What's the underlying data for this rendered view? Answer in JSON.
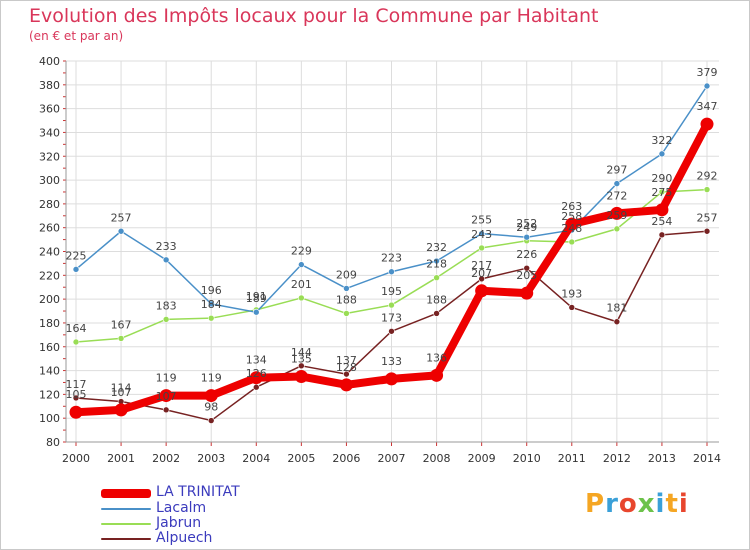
{
  "title": "Evolution des Impôts locaux pour la Commune par Habitant",
  "subtitle": "(en € et par an)",
  "brand": "Proxiti",
  "brand_colors": [
    "#f5a623",
    "#3aa0d8",
    "#e8462e",
    "#6cc24a",
    "#3aa0d8",
    "#f5a623",
    "#e8462e"
  ],
  "chart_data": {
    "type": "line",
    "x": [
      2000,
      2001,
      2002,
      2003,
      2004,
      2005,
      2006,
      2007,
      2008,
      2009,
      2010,
      2011,
      2012,
      2013,
      2014
    ],
    "ylim": [
      80,
      400
    ],
    "yticks": [
      80,
      100,
      120,
      140,
      160,
      180,
      200,
      220,
      240,
      260,
      280,
      300,
      320,
      340,
      360,
      380,
      400
    ],
    "grid": true,
    "legend_position": "bottom-left",
    "series": [
      {
        "name": "LA TRINITAT",
        "color": "#ee0000",
        "thick": true,
        "values": [
          105,
          107,
          119,
          119,
          134,
          135,
          128,
          133,
          136,
          207,
          205,
          263,
          272,
          275,
          347
        ],
        "labels": [
          "105",
          "107",
          "119",
          "119",
          "134",
          "135",
          "128",
          "133",
          "136",
          "207",
          "205",
          "263",
          "272",
          "275",
          "347"
        ]
      },
      {
        "name": "Lacalm",
        "color": "#4a90c8",
        "values": [
          225,
          257,
          233,
          196,
          189,
          229,
          209,
          223,
          232,
          255,
          252,
          258,
          297,
          322,
          379
        ],
        "labels": [
          "225",
          "257",
          "233",
          "196",
          "189",
          "229",
          "209",
          "223",
          "232",
          "255",
          "252",
          "258",
          "297",
          "322",
          "379"
        ]
      },
      {
        "name": "Jabrun",
        "color": "#99dd55",
        "values": [
          164,
          167,
          183,
          184,
          191,
          201,
          188,
          195,
          218,
          243,
          249,
          248,
          259,
          290,
          292
        ],
        "labels": [
          "164",
          "167",
          "183",
          "184",
          "191",
          "201",
          "188",
          "195",
          "218",
          "243",
          "249",
          "248",
          "259",
          "290",
          "292"
        ]
      },
      {
        "name": "Alpuech",
        "color": "#772222",
        "values": [
          117,
          114,
          107,
          98,
          126,
          144,
          137,
          173,
          188,
          217,
          226,
          193,
          181,
          254,
          257
        ],
        "labels": [
          "117",
          "114",
          "107",
          "98",
          "126",
          "144",
          "137",
          "173",
          "188",
          "217",
          "226",
          "193",
          "181",
          "254",
          "257"
        ]
      }
    ]
  }
}
